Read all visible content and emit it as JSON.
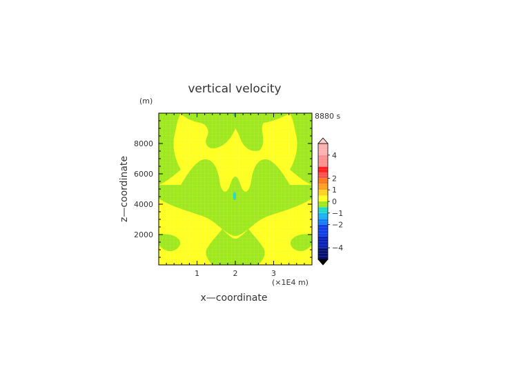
{
  "chart_data": {
    "type": "heatmap",
    "title": "vertical velocity",
    "xlabel": "x—coordinate",
    "ylabel": "z—coordinate",
    "y_unit": "(m)",
    "x_unit": "(×1E4 m)",
    "time_label": "8880 s",
    "xlim": [
      0,
      4
    ],
    "ylim": [
      0,
      10000
    ],
    "x_ticks": [
      {
        "value": 1,
        "label": "1"
      },
      {
        "value": 2,
        "label": "2"
      },
      {
        "value": 3,
        "label": "3"
      }
    ],
    "y_ticks": [
      {
        "value": 2000,
        "label": "2000"
      },
      {
        "value": 4000,
        "label": "4000"
      },
      {
        "value": 6000,
        "label": "6000"
      },
      {
        "value": 8000,
        "label": "8000"
      }
    ],
    "colorbar": {
      "levels": [
        {
          "low": 4,
          "high": 5,
          "color": "#ffb0b0"
        },
        {
          "low": 3,
          "high": 4,
          "color": "#ff9090"
        },
        {
          "low": 2.5,
          "high": 3,
          "color": "#ff2020"
        },
        {
          "low": 2,
          "high": 2.5,
          "color": "#ff5050"
        },
        {
          "low": 1.5,
          "high": 2,
          "color": "#ff7a1a"
        },
        {
          "low": 1,
          "high": 1.5,
          "color": "#ffa020"
        },
        {
          "low": 0.5,
          "high": 1,
          "color": "#ffd21e"
        },
        {
          "low": 0,
          "high": 0.5,
          "color": "#ffff22"
        },
        {
          "low": -0.5,
          "high": 0,
          "color": "#9fe81e"
        },
        {
          "low": -1,
          "high": -0.5,
          "color": "#20d8c8"
        },
        {
          "low": -1.5,
          "high": -1,
          "color": "#1ab4f0"
        },
        {
          "low": -2,
          "high": -1.5,
          "color": "#1080ff"
        },
        {
          "low": -3,
          "high": -2,
          "color": "#1040e8"
        },
        {
          "low": -4,
          "high": -3,
          "color": "#0a22b8"
        },
        {
          "low": -5,
          "high": -4,
          "color": "#061070"
        }
      ],
      "top_arrow_color": "#ffd0d0",
      "bottom_arrow_color": "#000000",
      "tick_labels": [
        {
          "value": 4,
          "label": "4"
        },
        {
          "value": 2,
          "label": "2"
        },
        {
          "value": 1,
          "label": "1"
        },
        {
          "value": 0,
          "label": "0"
        },
        {
          "value": -1,
          "label": "−1"
        },
        {
          "value": -2,
          "label": "−2"
        },
        {
          "value": -4,
          "label": "−4"
        }
      ]
    },
    "field_colors": {
      "positive": "#ffff22",
      "slightly_negative": "#9fe81e",
      "negative_core": "#20d8c8"
    }
  }
}
